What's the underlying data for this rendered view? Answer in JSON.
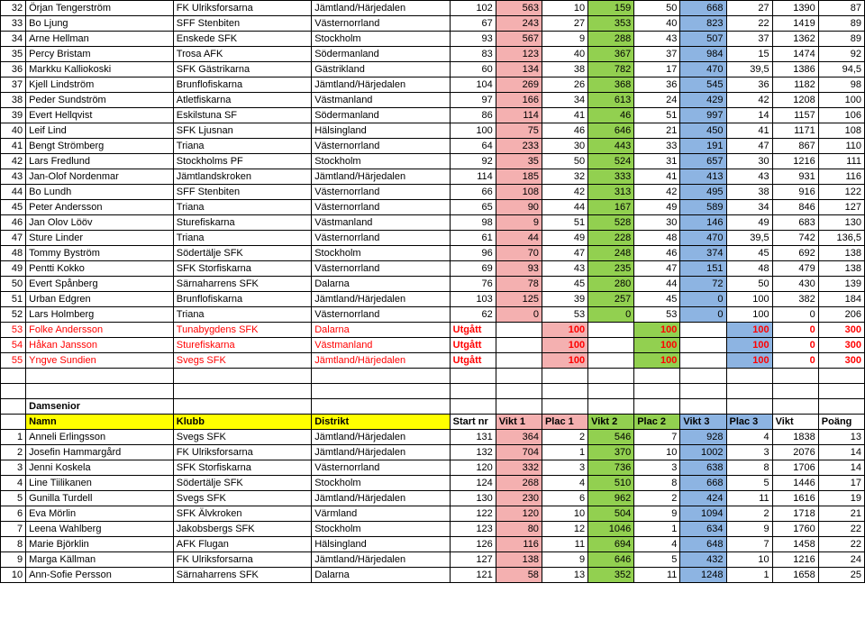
{
  "colors": {
    "pink": "#f4b0b0",
    "green": "#92d050",
    "blue": "#8db4e2",
    "yellow": "#ffff00",
    "red_text": "#ff0000",
    "white": "#ffffff",
    "border": "#000000"
  },
  "main": {
    "rows": [
      {
        "n": 32,
        "name": "Örjan Tengerström",
        "club": "FK Ulriksforsarna",
        "dist": "Jämtland/Härjedalen",
        "c": [
          102,
          563,
          10,
          159,
          50,
          668,
          27,
          1390,
          87
        ]
      },
      {
        "n": 33,
        "name": "Bo Ljung",
        "club": "SFF Stenbiten",
        "dist": "Västernorrland",
        "c": [
          67,
          243,
          27,
          353,
          40,
          823,
          22,
          1419,
          89
        ]
      },
      {
        "n": 34,
        "name": "Arne Hellman",
        "club": "Enskede SFK",
        "dist": "Stockholm",
        "c": [
          93,
          567,
          9,
          288,
          43,
          507,
          37,
          1362,
          89
        ]
      },
      {
        "n": 35,
        "name": "Percy Bristam",
        "club": "Trosa AFK",
        "dist": "Södermanland",
        "c": [
          83,
          123,
          40,
          367,
          37,
          984,
          15,
          1474,
          92
        ]
      },
      {
        "n": 36,
        "name": "Markku Kalliokoski",
        "club": "SFK Gästrikarna",
        "dist": "Gästrikland",
        "c": [
          60,
          134,
          38,
          782,
          17,
          470,
          "39,5",
          1386,
          "94,5"
        ]
      },
      {
        "n": 37,
        "name": "Kjell Lindström",
        "club": "Brunflofiskarna",
        "dist": "Jämtland/Härjedalen",
        "c": [
          104,
          269,
          26,
          368,
          36,
          545,
          36,
          1182,
          98
        ]
      },
      {
        "n": 38,
        "name": "Peder Sundström",
        "club": "Atletfiskarna",
        "dist": "Västmanland",
        "c": [
          97,
          166,
          34,
          613,
          24,
          429,
          42,
          1208,
          100
        ]
      },
      {
        "n": 39,
        "name": "Evert Hellqvist",
        "club": "Eskilstuna SF",
        "dist": "Södermanland",
        "c": [
          86,
          114,
          41,
          46,
          51,
          997,
          14,
          1157,
          106
        ]
      },
      {
        "n": 40,
        "name": "Leif Lind",
        "club": "SFK Ljusnan",
        "dist": "Hälsingland",
        "c": [
          100,
          75,
          46,
          646,
          21,
          450,
          41,
          1171,
          108
        ]
      },
      {
        "n": 41,
        "name": "Bengt Strömberg",
        "club": "Triana",
        "dist": "Västernorrland",
        "c": [
          64,
          233,
          30,
          443,
          33,
          191,
          47,
          867,
          110
        ]
      },
      {
        "n": 42,
        "name": "Lars Fredlund",
        "club": "Stockholms PF",
        "dist": "Stockholm",
        "c": [
          92,
          35,
          50,
          524,
          31,
          657,
          30,
          1216,
          111
        ]
      },
      {
        "n": 43,
        "name": "Jan-Olof Nordenmar",
        "club": "Jämtlandskroken",
        "dist": "Jämtland/Härjedalen",
        "c": [
          114,
          185,
          32,
          333,
          41,
          413,
          43,
          931,
          116
        ]
      },
      {
        "n": 44,
        "name": "Bo Lundh",
        "club": "SFF Stenbiten",
        "dist": "Västernorrland",
        "c": [
          66,
          108,
          42,
          313,
          42,
          495,
          38,
          916,
          122
        ]
      },
      {
        "n": 45,
        "name": "Peter Andersson",
        "club": "Triana",
        "dist": "Västernorrland",
        "c": [
          65,
          90,
          44,
          167,
          49,
          589,
          34,
          846,
          127
        ]
      },
      {
        "n": 46,
        "name": "Jan Olov Lööv",
        "club": "Sturefiskarna",
        "dist": "Västmanland",
        "c": [
          98,
          9,
          51,
          528,
          30,
          146,
          49,
          683,
          130
        ]
      },
      {
        "n": 47,
        "name": "Sture Linder",
        "club": "Triana",
        "dist": "Västernorrland",
        "c": [
          61,
          44,
          49,
          228,
          48,
          470,
          "39,5",
          742,
          "136,5"
        ]
      },
      {
        "n": 48,
        "name": "Tommy Byström",
        "club": "Södertälje SFK",
        "dist": "Stockholm",
        "c": [
          96,
          70,
          47,
          248,
          46,
          374,
          45,
          692,
          138
        ]
      },
      {
        "n": 49,
        "name": "Pentti Kokko",
        "club": "SFK Storfiskarna",
        "dist": "Västernorrland",
        "c": [
          69,
          93,
          43,
          235,
          47,
          151,
          48,
          479,
          138
        ]
      },
      {
        "n": 50,
        "name": "Evert Spånberg",
        "club": "Särnaharrens SFK",
        "dist": "Dalarna",
        "c": [
          76,
          78,
          45,
          280,
          44,
          72,
          50,
          430,
          139
        ]
      },
      {
        "n": 51,
        "name": "Urban Edgren",
        "club": "Brunflofiskarna",
        "dist": "Jämtland/Härjedalen",
        "c": [
          103,
          125,
          39,
          257,
          45,
          0,
          100,
          382,
          184
        ]
      },
      {
        "n": 52,
        "name": "Lars Holmberg",
        "club": "Triana",
        "dist": "Västernorrland",
        "c": [
          62,
          0,
          53,
          0,
          53,
          0,
          100,
          0,
          206
        ]
      },
      {
        "n": 53,
        "name": "Folke Andersson",
        "club": "Tunabygdens SFK",
        "dist": "Dalarna",
        "utg": "Utgått",
        "c": [
          "",
          100,
          "",
          100,
          "",
          100,
          0,
          300
        ],
        "red": true
      },
      {
        "n": 54,
        "name": "Håkan Jansson",
        "club": "Sturefiskarna",
        "dist": "Västmanland",
        "utg": "Utgått",
        "c": [
          "",
          100,
          "",
          100,
          "",
          100,
          0,
          300
        ],
        "red": true
      },
      {
        "n": 55,
        "name": "Yngve Sundien",
        "club": "Svegs SFK",
        "dist": "Jämtland/Härjedalen",
        "utg": "Utgått",
        "c": [
          "",
          100,
          "",
          100,
          "",
          100,
          0,
          300
        ],
        "red": true
      }
    ]
  },
  "section2": {
    "title": "Damsenior",
    "headers": [
      "Namn",
      "Klubb",
      "Distrikt",
      "Start nr",
      "Vikt 1",
      "Plac 1",
      "Vikt 2",
      "Plac 2",
      "Vikt 3",
      "Plac 3",
      "Vikt",
      "Poäng"
    ],
    "rows": [
      {
        "n": 1,
        "name": "Anneli Erlingsson",
        "club": "Svegs SFK",
        "dist": "Jämtland/Härjedalen",
        "c": [
          131,
          364,
          2,
          546,
          7,
          928,
          4,
          1838,
          13
        ]
      },
      {
        "n": 2,
        "name": "Josefin Hammargård",
        "club": "FK Ulriksforsarna",
        "dist": "Jämtland/Härjedalen",
        "c": [
          132,
          704,
          1,
          370,
          10,
          1002,
          3,
          2076,
          14
        ]
      },
      {
        "n": 3,
        "name": "Jenni Koskela",
        "club": "SFK Storfiskarna",
        "dist": "Västernorrland",
        "c": [
          120,
          332,
          3,
          736,
          3,
          638,
          8,
          1706,
          14
        ]
      },
      {
        "n": 4,
        "name": "Line Tiilikanen",
        "club": "Södertälje SFK",
        "dist": "Stockholm",
        "c": [
          124,
          268,
          4,
          510,
          8,
          668,
          5,
          1446,
          17
        ]
      },
      {
        "n": 5,
        "name": "Gunilla Turdell",
        "club": "Svegs SFK",
        "dist": "Jämtland/Härjedalen",
        "c": [
          130,
          230,
          6,
          962,
          2,
          424,
          11,
          1616,
          19
        ]
      },
      {
        "n": 6,
        "name": "Eva Mörlin",
        "club": "SFK Älvkroken",
        "dist": "Värmland",
        "c": [
          122,
          120,
          10,
          504,
          9,
          1094,
          2,
          1718,
          21
        ]
      },
      {
        "n": 7,
        "name": "Leena Wahlberg",
        "club": "Jakobsbergs SFK",
        "dist": "Stockholm",
        "c": [
          123,
          80,
          12,
          1046,
          1,
          634,
          9,
          1760,
          22
        ]
      },
      {
        "n": 8,
        "name": "Marie Björklin",
        "club": "AFK Flugan",
        "dist": "Hälsingland",
        "c": [
          126,
          116,
          11,
          694,
          4,
          648,
          7,
          1458,
          22
        ]
      },
      {
        "n": 9,
        "name": "Marga Källman",
        "club": "FK Ulriksforsarna",
        "dist": "Jämtland/Härjedalen",
        "c": [
          127,
          138,
          9,
          646,
          5,
          432,
          10,
          1216,
          24
        ]
      },
      {
        "n": 10,
        "name": "Ann-Sofie Persson",
        "club": "Särnaharrens SFK",
        "dist": "Dalarna",
        "c": [
          121,
          58,
          13,
          352,
          11,
          1248,
          1,
          1658,
          25
        ]
      }
    ]
  },
  "col_colors": [
    "",
    "pink",
    "",
    "green",
    "",
    "blue",
    "",
    "",
    ""
  ],
  "col_colors_utg": [
    "",
    "",
    "pink",
    "",
    "green",
    "",
    "blue",
    "",
    ""
  ]
}
